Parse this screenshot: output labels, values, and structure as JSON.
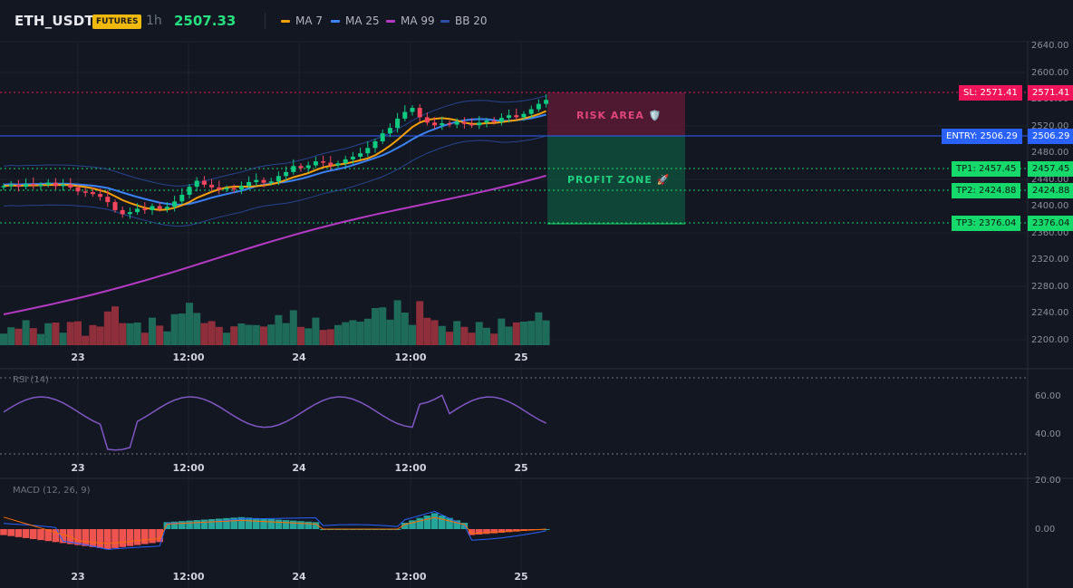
{
  "header": {
    "symbol": "ETH_USDT",
    "badge": "FUTURES",
    "interval": "1h",
    "price": "2507.33",
    "legend": [
      {
        "label": "MA 7",
        "color": "#f59e0b"
      },
      {
        "label": "MA 25",
        "color": "#3b82f6"
      },
      {
        "label": "MA 99",
        "color": "#b43ac4"
      },
      {
        "label": "BB 20",
        "color": "#2c4fa8"
      }
    ]
  },
  "price_axis": [
    "2640.00",
    "2600.00",
    "2560.00",
    "2520.00",
    "2480.00",
    "2440.00",
    "2400.00",
    "2360.00",
    "2320.00",
    "2280.00",
    "2240.00",
    "2200.00"
  ],
  "time_axis": [
    "23",
    "12:00",
    "24",
    "12:00",
    "25"
  ],
  "levels": {
    "sl": {
      "label": "SL: 2571.41",
      "value": "2571.41",
      "color": "#f0145a"
    },
    "entry": {
      "label": "ENTRY: 2506.29",
      "value": "2506.29",
      "color": "#2962ff"
    },
    "tp1": {
      "label": "TP1: 2457.45",
      "value": "2457.45",
      "color": "#16d96b"
    },
    "tp2": {
      "label": "TP2: 2424.88",
      "value": "2424.88",
      "color": "#16d96b"
    },
    "tp3": {
      "label": "TP3: 2376.04",
      "value": "2376.04",
      "color": "#16d96b"
    }
  },
  "zones": {
    "risk": "RISK AREA 🛡️",
    "profit": "PROFIT ZONE 🚀"
  },
  "rsi": {
    "title": "RSI (14)",
    "axis": [
      "60.00",
      "40.00"
    ],
    "color": "#7e57c2"
  },
  "macd": {
    "title": "MACD (12, 26, 9)",
    "axis": [
      "20.00",
      "0.00"
    ],
    "macd_color": "#2962ff",
    "signal_color": "#ff6d00"
  },
  "colors": {
    "up": "#0ecb81",
    "down": "#f6465d",
    "bg": "#131722"
  }
}
